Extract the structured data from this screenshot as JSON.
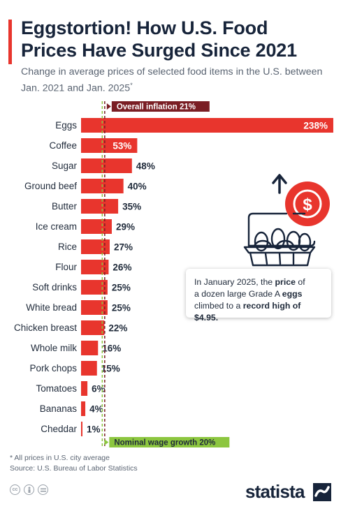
{
  "title": "Eggstortion! How U.S. Food Prices Have Surged Since 2021",
  "subtitle": "Change in average prices of selected food items in the U.S. between Jan. 2021 and Jan. 2025",
  "subtitle_marker": "*",
  "chart_data": {
    "type": "bar",
    "orientation": "horizontal",
    "categories": [
      "Eggs",
      "Coffee",
      "Sugar",
      "Ground beef",
      "Butter",
      "Ice cream",
      "Rice",
      "Flour",
      "Soft drinks",
      "White bread",
      "Chicken breast",
      "Whole milk",
      "Pork chops",
      "Tomatoes",
      "Bananas",
      "Cheddar"
    ],
    "values": [
      238,
      53,
      48,
      40,
      35,
      29,
      27,
      26,
      25,
      25,
      22,
      16,
      15,
      6,
      4,
      1
    ],
    "value_labels": [
      "238%",
      "53%",
      "48%",
      "40%",
      "35%",
      "29%",
      "27%",
      "26%",
      "25%",
      "25%",
      "22%",
      "16%",
      "15%",
      "6%",
      "4%",
      "1%"
    ],
    "unit": "%",
    "xlim": [
      0,
      240
    ],
    "bar_color": "#e8352d",
    "reference_lines": [
      {
        "label": "Overall inflation 21%",
        "value": 21,
        "color": "#7a1e24",
        "position": "top"
      },
      {
        "label": "Nominal wage growth 20%",
        "value": 20,
        "color": "#8cc63f",
        "position": "bottom"
      }
    ],
    "grid": false,
    "legend": "none"
  },
  "callout": {
    "line1_pre": "In January 2025, the ",
    "line1_bold": "price",
    "line1_post": " of",
    "line2_pre": "a dozen large Grade A ",
    "line2_bold": "eggs",
    "line3_pre": "climbed to a ",
    "line3_bold": "record high of $4.95."
  },
  "footnote": "* All prices in U.S. city average",
  "source": "Source: U.S. Bureau of Labor Statistics",
  "license_icons": [
    "cc-icon",
    "person-icon",
    "equals-icon"
  ],
  "brand": "statista",
  "colors": {
    "accent": "#e8352d",
    "title": "#17243a",
    "inflation": "#7a1e24",
    "wage": "#8cc63f",
    "dollar_badge": "#e8352d"
  }
}
